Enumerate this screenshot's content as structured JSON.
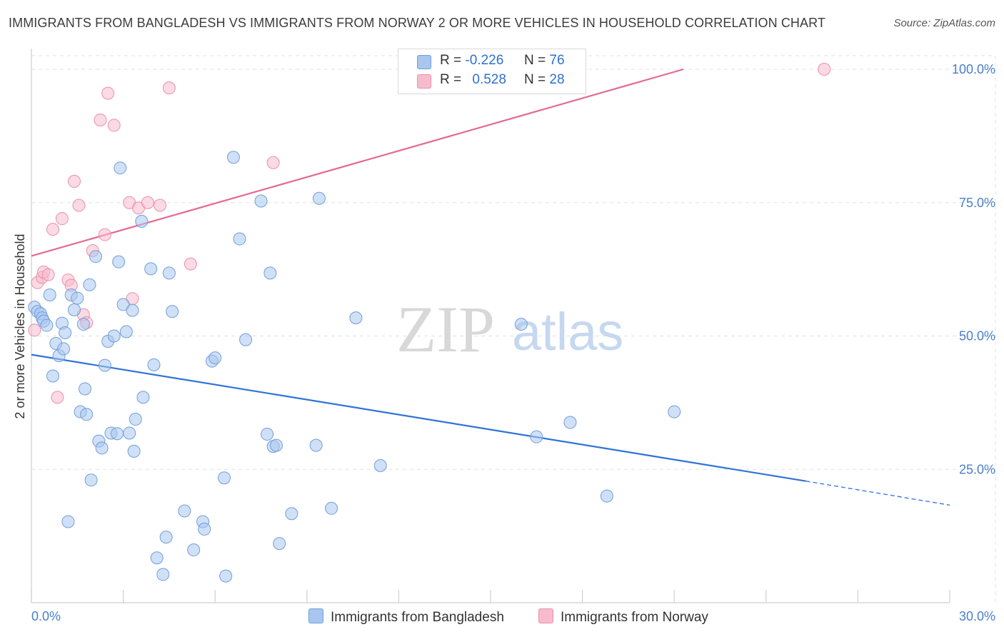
{
  "title": "IMMIGRANTS FROM BANGLADESH VS IMMIGRANTS FROM NORWAY 2 OR MORE VEHICLES IN HOUSEHOLD CORRELATION CHART",
  "source": "Source: ZipAtlas.com",
  "watermark": {
    "zip": "ZIP",
    "atlas": "atlas"
  },
  "legend": {
    "bangladesh": {
      "r_label": "R =",
      "r_value": "-0.226",
      "n_label": "N =",
      "n_value": "76"
    },
    "norway": {
      "r_label": "R =",
      "r_value": "0.528",
      "n_label": "N =",
      "n_value": "28"
    }
  },
  "colors": {
    "bangladesh_fill": "#a9c6ee",
    "bangladesh_stroke": "#6f9fdc",
    "bangladesh_line": "#2f73d6",
    "norway_fill": "#f6bccd",
    "norway_stroke": "#ec8fab",
    "norway_line": "#e46a93",
    "tick_text": "#4a7fcc",
    "grid": "#e0e0e0"
  },
  "chart_data": {
    "type": "scatter",
    "title": "IMMIGRANTS FROM BANGLADESH VS IMMIGRANTS FROM NORWAY 2 OR MORE VEHICLES IN HOUSEHOLD CORRELATION CHART",
    "xlabel": "",
    "ylabel": "2 or more Vehicles in Household",
    "xlim": [
      0,
      30
    ],
    "ylim": [
      0,
      100
    ],
    "x_tick_labels": [
      "0.0%",
      "30.0%"
    ],
    "y_tick_labels": [
      "100.0%",
      "75.0%",
      "50.0%",
      "25.0%"
    ],
    "y_ticks": [
      100,
      75,
      50,
      25
    ],
    "grid": true,
    "legend_position": "top-center",
    "series": [
      {
        "name": "Immigrants from Bangladesh",
        "trend": {
          "x": [
            0,
            25.3
          ],
          "y": [
            46.5,
            22.8
          ],
          "dashed_to": [
            30,
            18.3
          ]
        },
        "points": [
          [
            0.1,
            55.4
          ],
          [
            0.2,
            54.6
          ],
          [
            0.3,
            54.2
          ],
          [
            0.35,
            53.4
          ],
          [
            0.4,
            52.8
          ],
          [
            0.5,
            52.0
          ],
          [
            0.6,
            57.7
          ],
          [
            0.7,
            42.5
          ],
          [
            0.8,
            48.6
          ],
          [
            0.9,
            46.3
          ],
          [
            1.0,
            52.4
          ],
          [
            1.05,
            47.6
          ],
          [
            1.1,
            50.6
          ],
          [
            1.2,
            15.2
          ],
          [
            1.3,
            57.7
          ],
          [
            1.4,
            54.9
          ],
          [
            1.5,
            57.1
          ],
          [
            1.6,
            35.8
          ],
          [
            1.7,
            52.2
          ],
          [
            1.75,
            40.1
          ],
          [
            1.8,
            35.3
          ],
          [
            1.9,
            59.6
          ],
          [
            1.95,
            23.0
          ],
          [
            2.1,
            64.9
          ],
          [
            2.2,
            30.3
          ],
          [
            2.3,
            29.0
          ],
          [
            2.4,
            44.5
          ],
          [
            2.5,
            49.0
          ],
          [
            2.6,
            31.8
          ],
          [
            2.7,
            50.0
          ],
          [
            2.8,
            31.7
          ],
          [
            2.85,
            63.9
          ],
          [
            2.9,
            81.5
          ],
          [
            3.0,
            55.9
          ],
          [
            3.1,
            50.8
          ],
          [
            3.2,
            31.8
          ],
          [
            3.3,
            54.8
          ],
          [
            3.35,
            28.4
          ],
          [
            3.4,
            34.4
          ],
          [
            3.6,
            71.5
          ],
          [
            3.65,
            38.5
          ],
          [
            3.9,
            62.6
          ],
          [
            4.0,
            44.6
          ],
          [
            4.1,
            8.4
          ],
          [
            4.3,
            5.3
          ],
          [
            4.4,
            12.3
          ],
          [
            4.5,
            61.8
          ],
          [
            4.6,
            54.6
          ],
          [
            5.0,
            17.2
          ],
          [
            5.3,
            9.9
          ],
          [
            5.6,
            15.2
          ],
          [
            5.65,
            13.8
          ],
          [
            5.9,
            45.3
          ],
          [
            6.0,
            45.9
          ],
          [
            6.3,
            23.4
          ],
          [
            6.35,
            5.0
          ],
          [
            6.6,
            83.5
          ],
          [
            6.8,
            68.2
          ],
          [
            7.0,
            49.3
          ],
          [
            7.5,
            75.3
          ],
          [
            7.7,
            31.6
          ],
          [
            7.8,
            61.8
          ],
          [
            7.9,
            29.3
          ],
          [
            8.0,
            29.5
          ],
          [
            8.1,
            11.1
          ],
          [
            8.5,
            16.7
          ],
          [
            9.3,
            29.5
          ],
          [
            9.4,
            75.8
          ],
          [
            9.8,
            17.7
          ],
          [
            10.6,
            53.4
          ],
          [
            11.4,
            25.7
          ],
          [
            16.0,
            52.2
          ],
          [
            16.5,
            31.1
          ],
          [
            17.6,
            33.8
          ],
          [
            18.8,
            20.0
          ],
          [
            21.0,
            35.8
          ]
        ]
      },
      {
        "name": "Immigrants from Norway",
        "trend": {
          "x": [
            0,
            21.3
          ],
          "y": [
            65.0,
            100.0
          ]
        },
        "points": [
          [
            0.1,
            51.1
          ],
          [
            0.2,
            60.0
          ],
          [
            0.35,
            61.0
          ],
          [
            0.4,
            62.0
          ],
          [
            0.55,
            61.5
          ],
          [
            0.7,
            70.0
          ],
          [
            0.85,
            38.5
          ],
          [
            1.0,
            72.0
          ],
          [
            1.2,
            60.5
          ],
          [
            1.3,
            59.5
          ],
          [
            1.4,
            79.0
          ],
          [
            1.55,
            74.5
          ],
          [
            1.7,
            54.0
          ],
          [
            1.8,
            52.5
          ],
          [
            2.0,
            66.0
          ],
          [
            2.25,
            90.5
          ],
          [
            2.4,
            69.0
          ],
          [
            2.5,
            95.5
          ],
          [
            2.7,
            89.5
          ],
          [
            3.2,
            75.0
          ],
          [
            3.3,
            57.0
          ],
          [
            3.5,
            74.0
          ],
          [
            3.8,
            75.0
          ],
          [
            4.2,
            74.5
          ],
          [
            4.5,
            96.5
          ],
          [
            5.2,
            63.5
          ],
          [
            7.9,
            82.5
          ],
          [
            25.9,
            100.0
          ]
        ]
      }
    ]
  },
  "bottom_legend": {
    "bangladesh": "Immigrants from Bangladesh",
    "norway": "Immigrants from Norway"
  }
}
